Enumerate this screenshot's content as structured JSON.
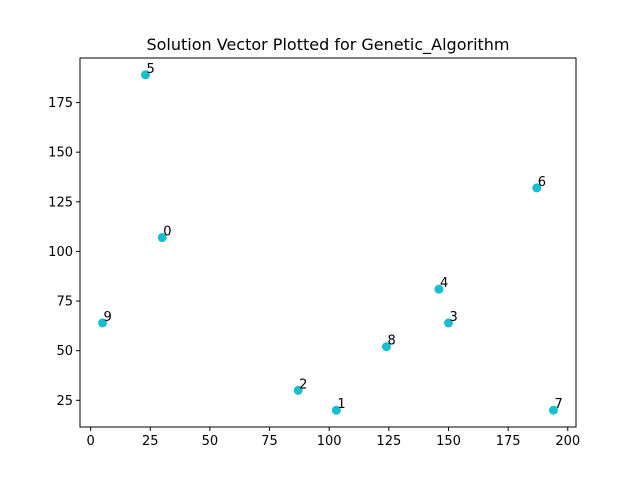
{
  "chart_data": {
    "type": "scatter",
    "title": "Solution Vector Plotted for Genetic_Algorithm",
    "xlabel": "",
    "ylabel": "",
    "xlim": [
      -4.45,
      203.45
    ],
    "ylim": [
      11.55,
      197.45
    ],
    "xticks": [
      0,
      25,
      50,
      75,
      100,
      125,
      150,
      175,
      200
    ],
    "yticks": [
      25,
      50,
      75,
      100,
      125,
      150,
      175
    ],
    "grid": false,
    "marker_color": "#17becf",
    "points": [
      {
        "label": "0",
        "x": 30,
        "y": 107
      },
      {
        "label": "1",
        "x": 103,
        "y": 20
      },
      {
        "label": "2",
        "x": 87,
        "y": 30
      },
      {
        "label": "3",
        "x": 150,
        "y": 64
      },
      {
        "label": "4",
        "x": 146,
        "y": 81
      },
      {
        "label": "5",
        "x": 23,
        "y": 189
      },
      {
        "label": "6",
        "x": 187,
        "y": 132
      },
      {
        "label": "7",
        "x": 194,
        "y": 20
      },
      {
        "label": "8",
        "x": 124,
        "y": 52
      },
      {
        "label": "9",
        "x": 5,
        "y": 64
      }
    ]
  }
}
